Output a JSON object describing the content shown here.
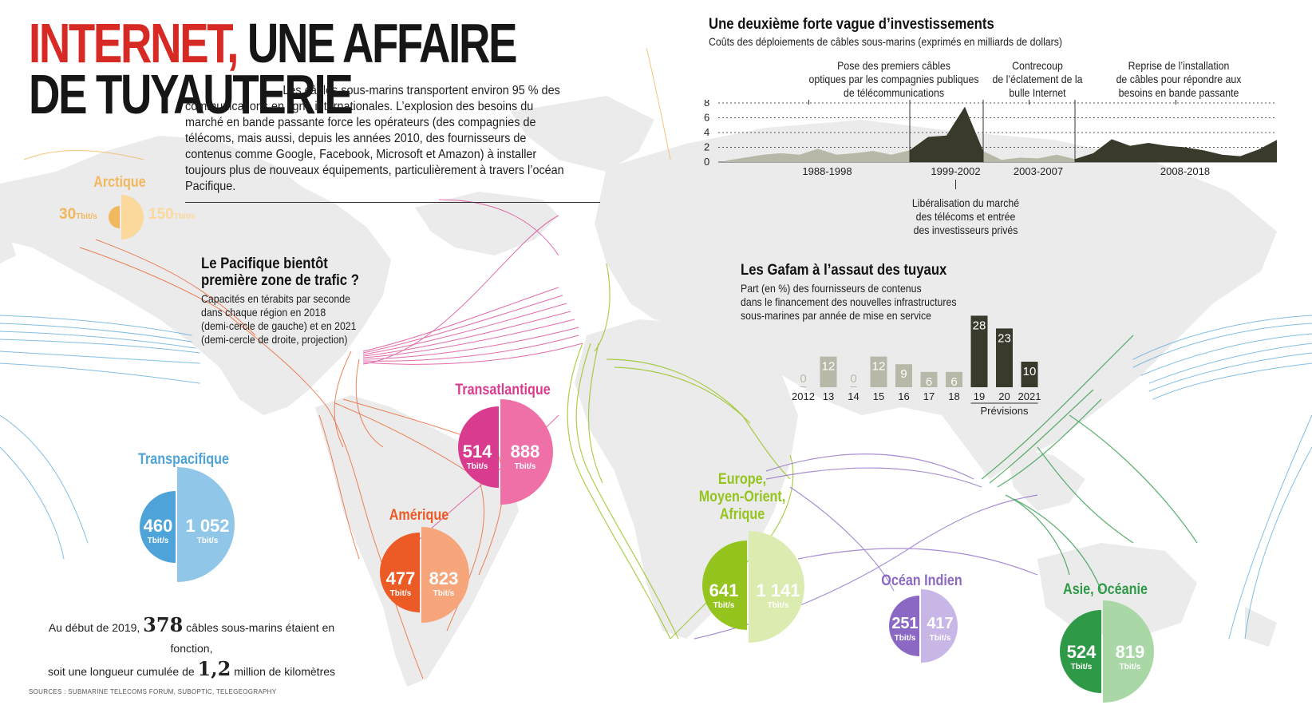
{
  "header": {
    "title_part1": "INTERNET,",
    "title_part2": " UNE AFFAIRE",
    "title_line2": "DE TUYAUTERIE",
    "intro": "Les câbles sous-marins transportent environ 95 % des communications en ligne internationales. L’explosion des besoins du marché en bande passante force les opérateurs (des compagnies de télécoms, mais aussi, depuis les années 2010, des fournisseurs de contenus comme Google, Facebook, Microsoft et Amazon) à installer toujours plus de nouveaux équipements, particulièrement à travers l’océan Pacifique."
  },
  "pacific_block": {
    "title_line1": "Le Pacifique bientôt",
    "title_line2": "première zone de trafic ?",
    "subtitle_lines": [
      "Capacités en térabits par seconde",
      "dans chaque région en 2018",
      "(demi-cercle de gauche) et en 2021",
      "(demi-cercle de droite, projection)"
    ]
  },
  "regions": [
    {
      "name": "Arctique",
      "v2018": "30",
      "v2021": "150",
      "unit": "Tbit/s",
      "color_dark": "#f1b85e",
      "color_light": "#fbd89c"
    },
    {
      "name": "Transpacifique",
      "v2018": "460",
      "v2021": "1 052",
      "unit": "Tbit/s",
      "color_dark": "#4ea3d8",
      "color_light": "#90c6e8"
    },
    {
      "name": "Transatlantique",
      "v2018": "514",
      "v2021": "888",
      "unit": "Tbit/s",
      "color_dark": "#d93b8e",
      "color_light": "#ef6fa7"
    },
    {
      "name": "Amérique",
      "v2018": "477",
      "v2021": "823",
      "unit": "Tbit/s",
      "color_dark": "#ec5a26",
      "color_light": "#f7a57b"
    },
    {
      "name_lines": [
        "Europe,",
        "Moyen-Orient,",
        "Afrique"
      ],
      "v2018": "641",
      "v2021": "1 141",
      "unit": "Tbit/s",
      "color_dark": "#95c41f",
      "color_light": "#dcebb0"
    },
    {
      "name": "Océan Indien",
      "v2018": "251",
      "v2021": "417",
      "unit": "Tbit/s",
      "color_dark": "#8b68c4",
      "color_light": "#c8b6e6"
    },
    {
      "name": "Asie, Océanie",
      "v2018": "524",
      "v2021": "819",
      "unit": "Tbit/s",
      "color_dark": "#2e9a48",
      "color_light": "#a9d8a6"
    }
  ],
  "bottom_note": {
    "line1_pre": "Au début de 2019, ",
    "number1": "378",
    "line1_post": " câbles sous-marins étaient en fonction,",
    "line2_pre": "soit une longueur cumulée de ",
    "number2": "1,2",
    "line2_post": " million de kilomètres"
  },
  "sources": "SOURCES : SUBMARINE TELECOMS FORUM, SUBOPTIC, TELEGEOGRAPHY",
  "investment_chart": {
    "title": "Une deuxième forte vague d’investissements",
    "subtitle": "Coûts des déploiements de câbles sous-marins (exprimés en milliards de dollars)",
    "annotations": [
      {
        "text_lines": [
          "Pose des premiers câbles",
          "optiques par les compagnies publiques",
          "de télécommunications"
        ]
      },
      {
        "text_lines": [
          "Contrecoup",
          "de l’éclatement de la",
          "bulle Internet"
        ]
      },
      {
        "text_lines": [
          "Reprise de l’installation",
          "de câbles pour répondre aux",
          "besoins en bande passante"
        ]
      },
      {
        "text_lines": [
          "Libéralisation du marché",
          "des télécoms et entrée",
          "des investisseurs privés"
        ]
      }
    ],
    "yticks": [
      "8",
      "6",
      "4",
      "2",
      "0"
    ],
    "period_labels": [
      "1988-1998",
      "1999-2002",
      "2003-2007",
      "2008-2018"
    ]
  },
  "gafam_chart": {
    "title": "Les Gafam à l’assaut des tuyaux",
    "subtitle_lines": [
      "Part (en %) des fournisseurs de contenus",
      "dans le financement des nouvelles infrastructures",
      "sous-marines par année de mise en service"
    ],
    "forecast_label": "Prévisions"
  },
  "chart_data": [
    {
      "type": "area",
      "title": "Une deuxième forte vague d’investissements",
      "ylabel": "milliards de dollars",
      "ylim": [
        0,
        8
      ],
      "grid": true,
      "x": [
        1988,
        1989,
        1990,
        1991,
        1992,
        1993,
        1994,
        1995,
        1996,
        1997,
        1998,
        1999,
        2000,
        2001,
        2002,
        2003,
        2004,
        2005,
        2006,
        2007,
        2008,
        2009,
        2010,
        2011,
        2012,
        2013,
        2014,
        2015,
        2016,
        2017,
        2018
      ],
      "series": [
        {
          "values": [
            0.2,
            0.6,
            1.0,
            1.2,
            1.0,
            1.8,
            1.0,
            1.2,
            1.5,
            1.0,
            1.6,
            3.4,
            3.6,
            7.5,
            1.5,
            0.3,
            0.6,
            0.5,
            1.0,
            0.4,
            1.2,
            3.1,
            2.2,
            2.6,
            2.2,
            2.0,
            1.6,
            1.0,
            0.8,
            1.7,
            3.0
          ]
        }
      ],
      "period_labels": [
        "1988-1998",
        "1999-2002",
        "2003-2007",
        "2008-2018"
      ]
    },
    {
      "type": "bar",
      "title": "Les Gafam à l’assaut des tuyaux",
      "categories": [
        "2012",
        "13",
        "14",
        "15",
        "16",
        "17",
        "18",
        "19",
        "20",
        "2021"
      ],
      "values": [
        0,
        12,
        0,
        12,
        9,
        6,
        6,
        28,
        23,
        10
      ],
      "ylim": [
        0,
        30
      ],
      "forecast_categories": [
        "19",
        "20",
        "2021"
      ]
    }
  ]
}
